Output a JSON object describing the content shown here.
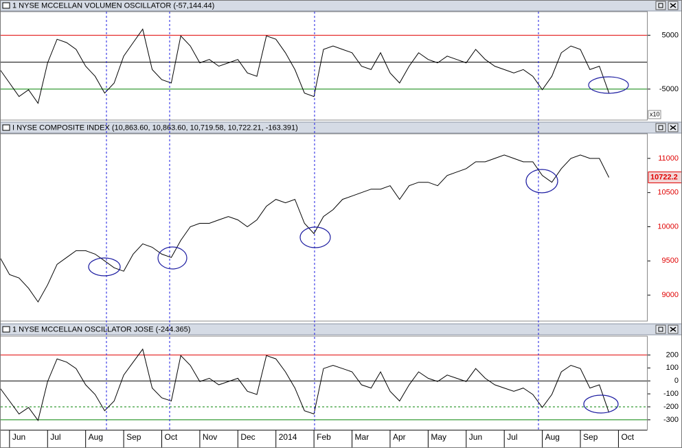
{
  "chart_data": [
    {
      "type": "line",
      "title": "1 NYSE MCCELLAN VOLUMEN OSCILLATOR (-57,144.44)",
      "color": "#000000",
      "values": [
        -1375,
        -3875,
        -6375,
        -5125,
        -7625,
        -125,
        4250,
        3625,
        2375,
        -750,
        -2625,
        -5750,
        -3875,
        1125,
        3625,
        6125,
        -1375,
        -3250,
        -3875,
        4875,
        3000,
        -125,
        500,
        -750,
        -125,
        500,
        -2000,
        -2625,
        4875,
        4250,
        1750,
        -1375,
        -5750,
        -6375,
        2375,
        3000,
        2375,
        1750,
        -750,
        -1375,
        1750,
        -2000,
        -3875,
        -750,
        1750,
        500,
        -125,
        1125,
        500,
        -125,
        2375,
        500,
        -750,
        -1375,
        -2000,
        -1375,
        -2625,
        -5125,
        -2625,
        1750,
        3000,
        2375,
        -1375,
        -750,
        -5700
      ],
      "xlim": [
        0,
        68
      ],
      "ylim": [
        -10750,
        9375
      ],
      "yticks": [
        5000,
        -5000
      ],
      "reference_lines": [
        {
          "value": 5000,
          "color": "#e00000",
          "dash": false
        },
        {
          "value": 0,
          "color": "#000000",
          "dash": false
        },
        {
          "value": -5000,
          "color": "#008000",
          "dash": false
        }
      ],
      "axis_label_color": "#000000",
      "axis_multiplier_label": "x10"
    },
    {
      "type": "line",
      "title": "I NYSE COMPOSITE INDEX (10,863.60, 10,863.60, 10,719.58, 10,722.21, -163.391)",
      "color": "#000000",
      "values": [
        9550,
        9300,
        9250,
        9100,
        8900,
        9150,
        9450,
        9550,
        9650,
        9650,
        9600,
        9500,
        9400,
        9350,
        9600,
        9750,
        9700,
        9600,
        9550,
        9800,
        10000,
        10050,
        10050,
        10100,
        10150,
        10100,
        10000,
        10100,
        10300,
        10400,
        10350,
        10400,
        10050,
        9900,
        10150,
        10250,
        10400,
        10450,
        10500,
        10550,
        10550,
        10600,
        10400,
        10600,
        10650,
        10650,
        10600,
        10750,
        10800,
        10850,
        10950,
        10950,
        11000,
        11050,
        11000,
        10950,
        10950,
        10750,
        10650,
        10850,
        11000,
        11050,
        11000,
        11000,
        10722
      ],
      "xlim": [
        0,
        68
      ],
      "ylim": [
        8620,
        11360
      ],
      "yticks": [
        11000,
        10500,
        10000,
        9500,
        9000
      ],
      "reference_lines": [],
      "axis_label_color": "#e00000",
      "last_value_label": "10722.2"
    },
    {
      "type": "line",
      "title": "1 NYSE MCCELLAN OSCILLATOR JOSE (-244.365)",
      "color": "#000000",
      "values": [
        -55,
        -155,
        -255,
        -205,
        -305,
        -5,
        170,
        145,
        95,
        -30,
        -105,
        -230,
        -155,
        45,
        145,
        245,
        -55,
        -130,
        -155,
        195,
        120,
        -5,
        20,
        -30,
        -5,
        20,
        -80,
        -105,
        195,
        170,
        70,
        -55,
        -230,
        -255,
        95,
        120,
        95,
        70,
        -30,
        -55,
        70,
        -80,
        -155,
        -30,
        70,
        20,
        -5,
        45,
        20,
        -5,
        95,
        20,
        -30,
        -55,
        -80,
        -55,
        -105,
        -205,
        -105,
        70,
        120,
        95,
        -55,
        -30,
        -244
      ],
      "xlim": [
        0,
        68
      ],
      "ylim": [
        -380,
        345
      ],
      "yticks": [
        200,
        100,
        0,
        -100,
        -200,
        -300
      ],
      "reference_lines": [
        {
          "value": 200,
          "color": "#e00000",
          "dash": false
        },
        {
          "value": 0,
          "color": "#000000",
          "dash": false
        },
        {
          "value": -200,
          "color": "#008000",
          "dash": true
        },
        {
          "value": -300,
          "color": "#008000",
          "dash": false
        }
      ],
      "axis_label_color": "#000000",
      "xticks": [
        {
          "value": 1,
          "label": "Jun"
        },
        {
          "value": 5,
          "label": "Jul"
        },
        {
          "value": 9,
          "label": "Aug"
        },
        {
          "value": 13,
          "label": "Sep"
        },
        {
          "value": 17,
          "label": "Oct"
        },
        {
          "value": 21,
          "label": "Nov"
        },
        {
          "value": 25,
          "label": "Dec"
        },
        {
          "value": 29,
          "label": "2014"
        },
        {
          "value": 33,
          "label": "Feb"
        },
        {
          "value": 37,
          "label": "Mar"
        },
        {
          "value": 41,
          "label": "Apr"
        },
        {
          "value": 45,
          "label": "May"
        },
        {
          "value": 49,
          "label": "Jun"
        },
        {
          "value": 53,
          "label": "Jul"
        },
        {
          "value": 57,
          "label": "Aug"
        },
        {
          "value": 61,
          "label": "Sep"
        },
        {
          "value": 65,
          "label": "Oct"
        }
      ]
    }
  ]
}
